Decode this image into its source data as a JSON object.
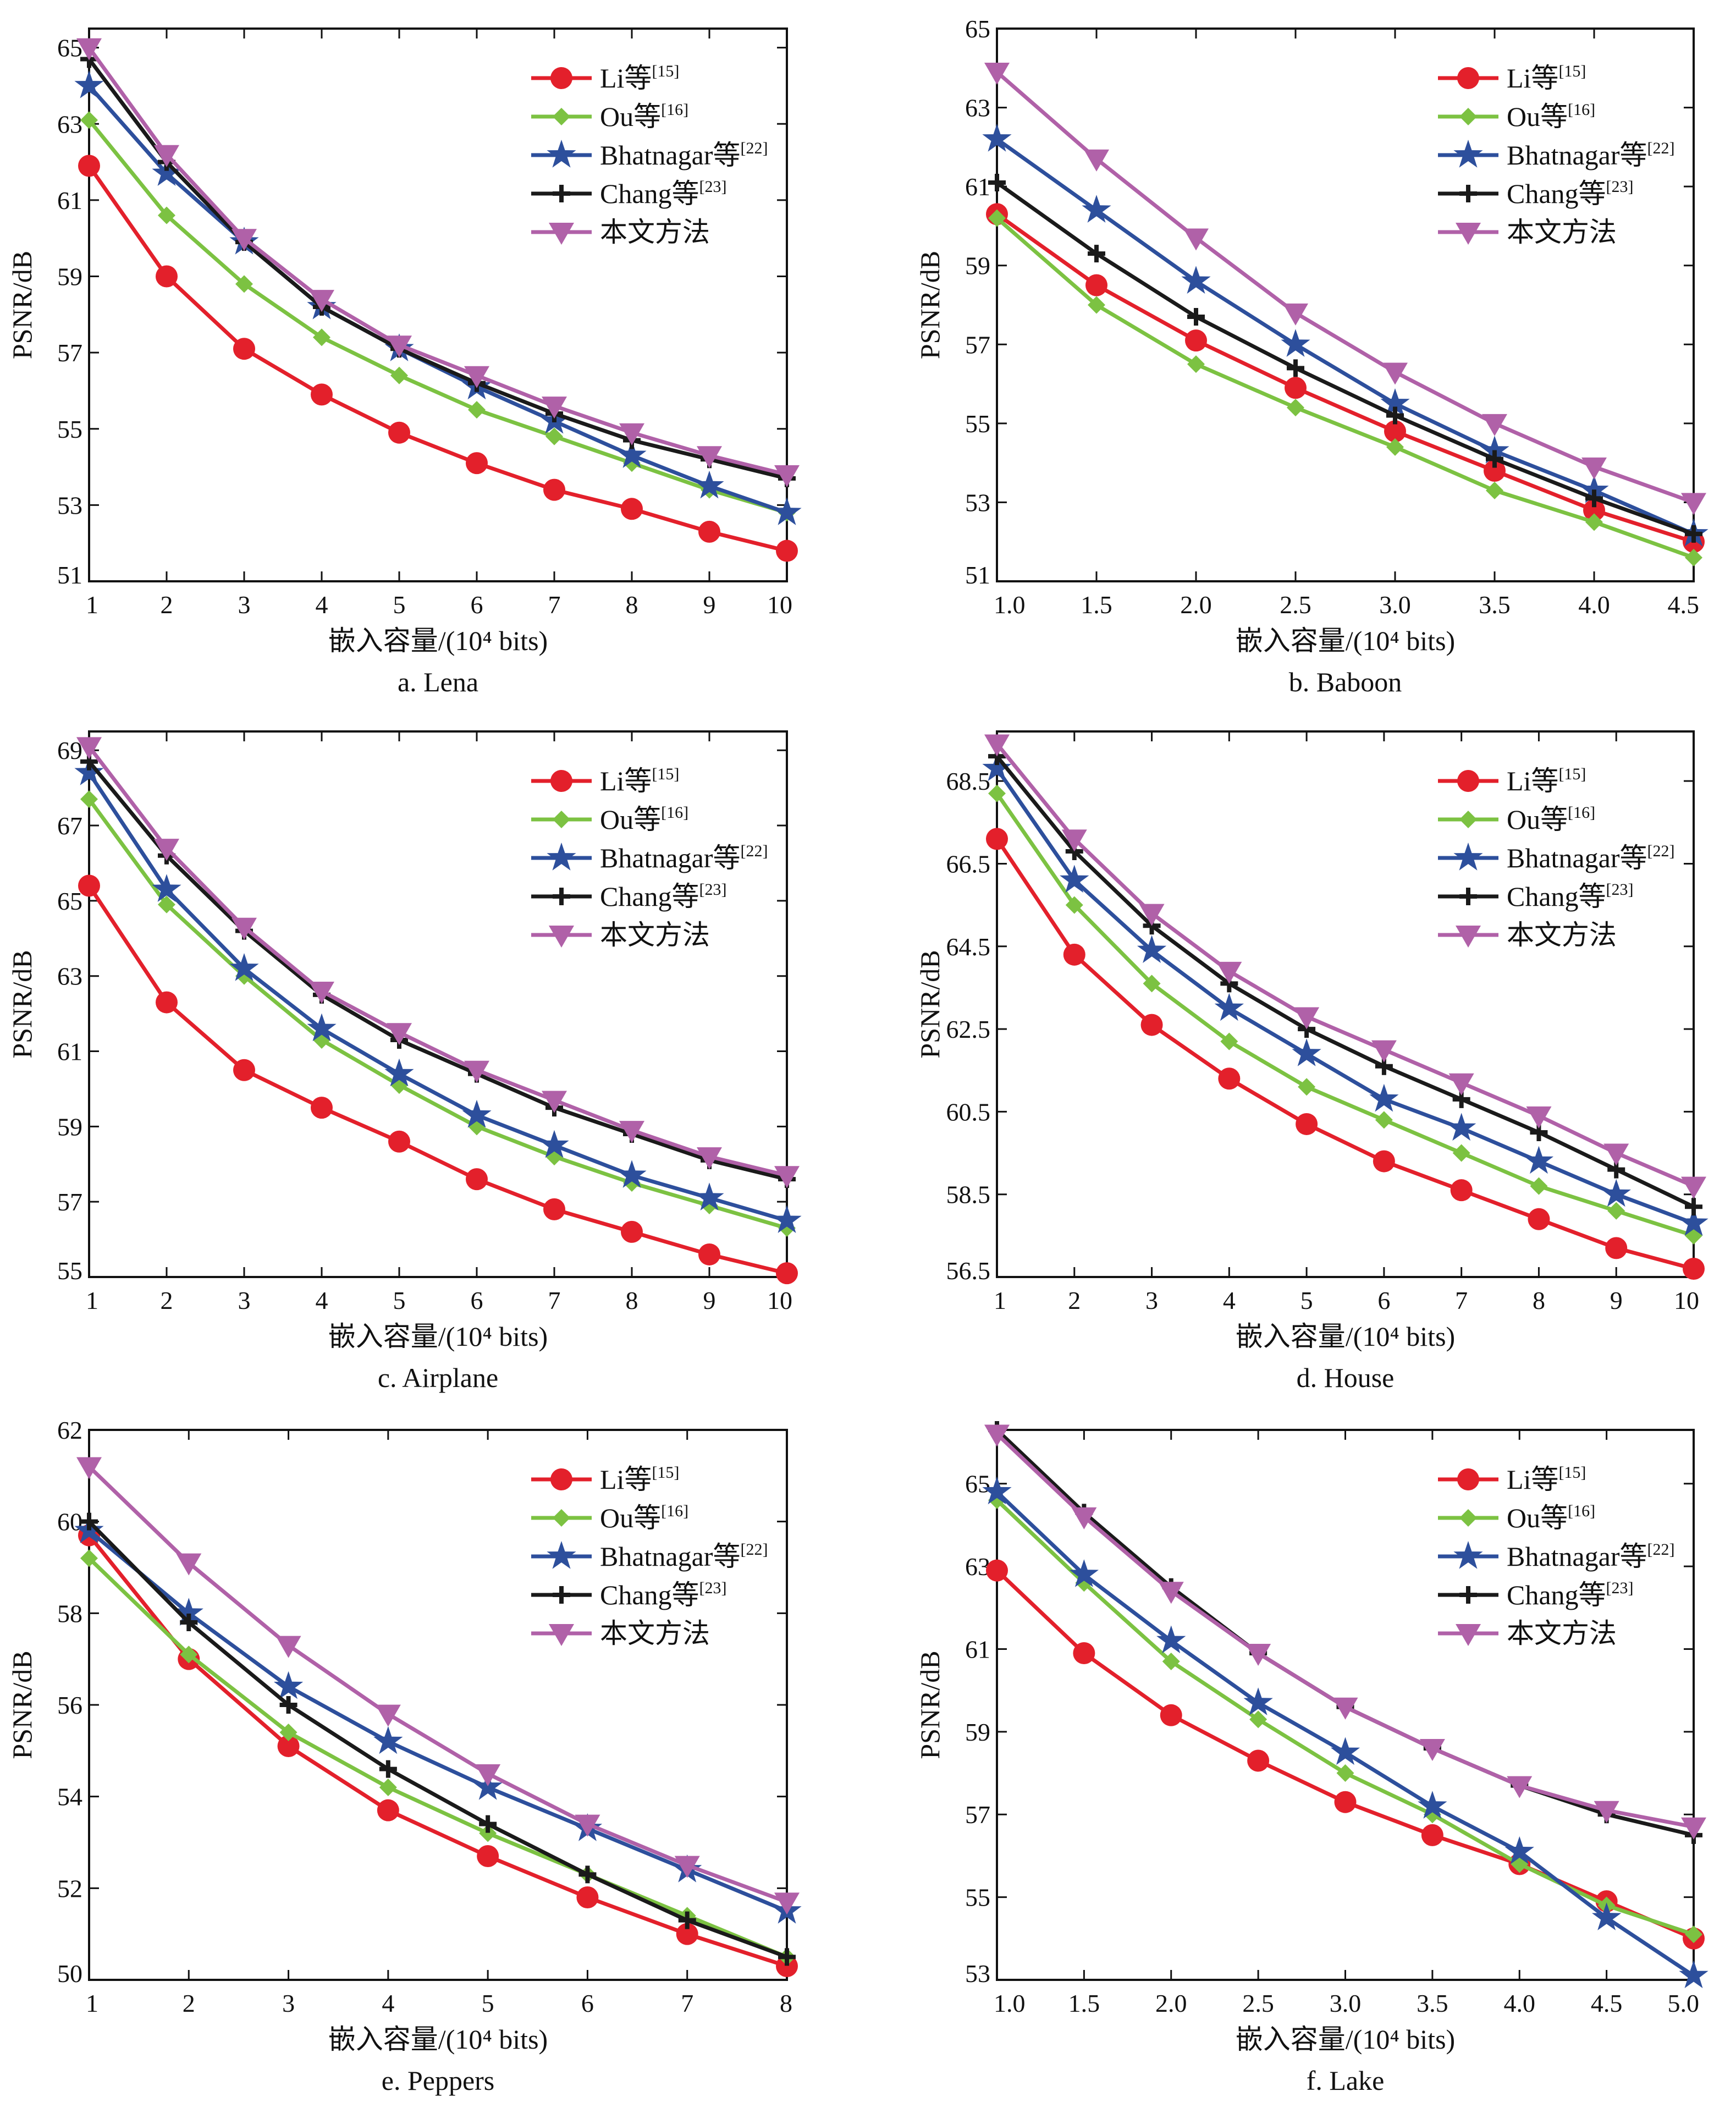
{
  "styles": {
    "Li": {
      "color": "#e3202b",
      "marker": "circle"
    },
    "Ou": {
      "color": "#7cc242",
      "marker": "diamond"
    },
    "Bhatnagar": {
      "color": "#2d4f9c",
      "marker": "star"
    },
    "Chang": {
      "color": "#1a1a1a",
      "marker": "plus"
    },
    "Ours": {
      "color": "#b061a8",
      "marker": "triangle-down"
    }
  },
  "chart_data": [
    {
      "type": "line",
      "caption": "a. Lena",
      "xlabel": "嵌入容量/(10⁴ bits)",
      "ylabel": "PSNR/dB",
      "xlim": [
        1,
        10
      ],
      "ylim": [
        51,
        65.5
      ],
      "xticks": [
        1,
        2,
        3,
        4,
        5,
        6,
        7,
        8,
        9,
        10
      ],
      "xtick_labels": [
        "1",
        "2",
        "3",
        "4",
        "5",
        "6",
        "7",
        "8",
        "9",
        "10"
      ],
      "yticks": [
        51,
        53,
        55,
        57,
        59,
        61,
        63,
        65
      ],
      "ytick_labels": [
        "51",
        "53",
        "55",
        "57",
        "59",
        "61",
        "63",
        "65"
      ],
      "x": [
        1,
        2,
        3,
        4,
        5,
        6,
        7,
        8,
        9,
        10
      ],
      "legend_position": "top-right",
      "series": [
        {
          "key": "Li",
          "name": "Li等",
          "ref": "[15]",
          "values": [
            61.9,
            59.0,
            57.1,
            55.9,
            54.9,
            54.1,
            53.4,
            52.9,
            52.3,
            51.8
          ]
        },
        {
          "key": "Ou",
          "name": "Ou等",
          "ref": "[16]",
          "values": [
            63.1,
            60.6,
            58.8,
            57.4,
            56.4,
            55.5,
            54.8,
            54.1,
            53.4,
            52.8
          ]
        },
        {
          "key": "Bhatnagar",
          "name": "Bhatnagar等",
          "ref": "[22]",
          "values": [
            64.0,
            61.7,
            59.9,
            58.2,
            57.1,
            56.1,
            55.2,
            54.3,
            53.5,
            52.8
          ]
        },
        {
          "key": "Chang",
          "name": "Chang等",
          "ref": "[23]",
          "values": [
            64.7,
            62.0,
            59.9,
            58.2,
            57.1,
            56.2,
            55.4,
            54.7,
            54.2,
            53.7
          ]
        },
        {
          "key": "Ours",
          "name": "本文方法",
          "ref": "",
          "values": [
            65.0,
            62.2,
            60.0,
            58.4,
            57.2,
            56.4,
            55.6,
            54.9,
            54.3,
            53.8
          ]
        }
      ]
    },
    {
      "type": "line",
      "caption": "b. Baboon",
      "xlabel": "嵌入容量/(10⁴ bits)",
      "ylabel": "PSNR/dB",
      "xlim": [
        1.0,
        4.5
      ],
      "ylim": [
        51,
        65
      ],
      "xticks": [
        1.0,
        1.5,
        2.0,
        2.5,
        3.0,
        3.5,
        4.0,
        4.5
      ],
      "xtick_labels": [
        "1.0",
        "1.5",
        "2.0",
        "2.5",
        "3.0",
        "3.5",
        "4.0",
        "4.5"
      ],
      "yticks": [
        51,
        53,
        55,
        57,
        59,
        61,
        63,
        65
      ],
      "ytick_labels": [
        "51",
        "53",
        "55",
        "57",
        "59",
        "61",
        "63",
        "65"
      ],
      "x": [
        1.0,
        1.5,
        2.0,
        2.5,
        3.0,
        3.5,
        4.0,
        4.5
      ],
      "legend_position": "top-right",
      "series": [
        {
          "key": "Li",
          "name": "Li等",
          "ref": "[15]",
          "values": [
            60.3,
            58.5,
            57.1,
            55.9,
            54.8,
            53.8,
            52.8,
            52.0
          ]
        },
        {
          "key": "Ou",
          "name": "Ou等",
          "ref": "[16]",
          "values": [
            60.2,
            58.0,
            56.5,
            55.4,
            54.4,
            53.3,
            52.5,
            51.6
          ]
        },
        {
          "key": "Bhatnagar",
          "name": "Bhatnagar等",
          "ref": "[22]",
          "values": [
            62.2,
            60.4,
            58.6,
            57.0,
            55.5,
            54.3,
            53.3,
            52.2
          ]
        },
        {
          "key": "Chang",
          "name": "Chang等",
          "ref": "[23]",
          "values": [
            61.1,
            59.3,
            57.7,
            56.4,
            55.2,
            54.1,
            53.1,
            52.2
          ]
        },
        {
          "key": "Ours",
          "name": "本文方法",
          "ref": "",
          "values": [
            63.9,
            61.7,
            59.7,
            57.8,
            56.3,
            55.0,
            53.9,
            53.0
          ]
        }
      ]
    },
    {
      "type": "line",
      "caption": "c. Airplane",
      "xlabel": "嵌入容量/(10⁴ bits)",
      "ylabel": "PSNR/dB",
      "xlim": [
        1,
        10
      ],
      "ylim": [
        55,
        69.5
      ],
      "xticks": [
        1,
        2,
        3,
        4,
        5,
        6,
        7,
        8,
        9,
        10
      ],
      "xtick_labels": [
        "1",
        "2",
        "3",
        "4",
        "5",
        "6",
        "7",
        "8",
        "9",
        "10"
      ],
      "yticks": [
        55,
        57,
        59,
        61,
        63,
        65,
        67,
        69
      ],
      "ytick_labels": [
        "55",
        "57",
        "59",
        "61",
        "63",
        "65",
        "67",
        "69"
      ],
      "x": [
        1,
        2,
        3,
        4,
        5,
        6,
        7,
        8,
        9,
        10
      ],
      "legend_position": "top-right",
      "series": [
        {
          "key": "Li",
          "name": "Li等",
          "ref": "[15]",
          "values": [
            65.4,
            62.3,
            60.5,
            59.5,
            58.6,
            57.6,
            56.8,
            56.2,
            55.6,
            55.1
          ]
        },
        {
          "key": "Ou",
          "name": "Ou等",
          "ref": "[16]",
          "values": [
            67.7,
            64.9,
            63.0,
            61.3,
            60.1,
            59.0,
            58.2,
            57.5,
            56.9,
            56.3
          ]
        },
        {
          "key": "Bhatnagar",
          "name": "Bhatnagar等",
          "ref": "[22]",
          "values": [
            68.4,
            65.3,
            63.2,
            61.6,
            60.4,
            59.3,
            58.5,
            57.7,
            57.1,
            56.5
          ]
        },
        {
          "key": "Chang",
          "name": "Chang等",
          "ref": "[23]",
          "values": [
            68.7,
            66.2,
            64.2,
            62.5,
            61.3,
            60.4,
            59.5,
            58.8,
            58.1,
            57.6
          ]
        },
        {
          "key": "Ours",
          "name": "本文方法",
          "ref": "",
          "values": [
            69.1,
            66.4,
            64.3,
            62.6,
            61.5,
            60.5,
            59.7,
            58.9,
            58.2,
            57.7
          ]
        }
      ]
    },
    {
      "type": "line",
      "caption": "d. House",
      "xlabel": "嵌入容量/(10⁴ bits)",
      "ylabel": "PSNR/dB",
      "xlim": [
        1,
        10
      ],
      "ylim": [
        56.5,
        69.7
      ],
      "xticks": [
        1,
        2,
        3,
        4,
        5,
        6,
        7,
        8,
        9,
        10
      ],
      "xtick_labels": [
        "1",
        "2",
        "3",
        "4",
        "5",
        "6",
        "7",
        "8",
        "9",
        "10"
      ],
      "yticks": [
        56.5,
        58.5,
        60.5,
        62.5,
        64.5,
        66.5,
        68.5
      ],
      "ytick_labels": [
        "56.5",
        "58.5",
        "60.5",
        "62.5",
        "64.5",
        "66.5",
        "68.5"
      ],
      "x": [
        1,
        2,
        3,
        4,
        5,
        6,
        7,
        8,
        9,
        10
      ],
      "legend_position": "top-right",
      "series": [
        {
          "key": "Li",
          "name": "Li等",
          "ref": "[15]",
          "values": [
            67.1,
            64.3,
            62.6,
            61.3,
            60.2,
            59.3,
            58.6,
            57.9,
            57.2,
            56.7
          ]
        },
        {
          "key": "Ou",
          "name": "Ou等",
          "ref": "[16]",
          "values": [
            68.2,
            65.5,
            63.6,
            62.2,
            61.1,
            60.3,
            59.5,
            58.7,
            58.1,
            57.5
          ]
        },
        {
          "key": "Bhatnagar",
          "name": "Bhatnagar等",
          "ref": "[22]",
          "values": [
            68.8,
            66.1,
            64.4,
            63.0,
            61.9,
            60.8,
            60.1,
            59.3,
            58.5,
            57.8
          ]
        },
        {
          "key": "Chang",
          "name": "Chang等",
          "ref": "[23]",
          "values": [
            69.1,
            66.8,
            65.0,
            63.6,
            62.5,
            61.6,
            60.8,
            60.0,
            59.1,
            58.2
          ]
        },
        {
          "key": "Ours",
          "name": "本文方法",
          "ref": "",
          "values": [
            69.4,
            67.1,
            65.3,
            63.9,
            62.8,
            62.0,
            61.2,
            60.4,
            59.5,
            58.7
          ]
        }
      ]
    },
    {
      "type": "line",
      "caption": "e. Peppers",
      "xlabel": "嵌入容量/(10⁴ bits)",
      "ylabel": "PSNR/dB",
      "xlim": [
        1,
        8
      ],
      "ylim": [
        50,
        62
      ],
      "xticks": [
        1,
        2,
        3,
        4,
        5,
        6,
        7,
        8
      ],
      "xtick_labels": [
        "1",
        "2",
        "3",
        "4",
        "5",
        "6",
        "7",
        "8"
      ],
      "yticks": [
        50,
        52,
        54,
        56,
        58,
        60,
        62
      ],
      "ytick_labels": [
        "50",
        "52",
        "54",
        "56",
        "58",
        "60",
        "62"
      ],
      "x": [
        1,
        2,
        3,
        4,
        5,
        6,
        7,
        8
      ],
      "legend_position": "top-right",
      "series": [
        {
          "key": "Li",
          "name": "Li等",
          "ref": "[15]",
          "values": [
            59.7,
            57.0,
            55.1,
            53.7,
            52.7,
            51.8,
            51.0,
            50.3
          ]
        },
        {
          "key": "Ou",
          "name": "Ou等",
          "ref": "[16]",
          "values": [
            59.2,
            57.1,
            55.4,
            54.2,
            53.2,
            52.3,
            51.4,
            50.5
          ]
        },
        {
          "key": "Bhatnagar",
          "name": "Bhatnagar等",
          "ref": "[22]",
          "values": [
            59.8,
            58.0,
            56.4,
            55.2,
            54.2,
            53.3,
            52.4,
            51.5
          ]
        },
        {
          "key": "Chang",
          "name": "Chang等",
          "ref": "[23]",
          "values": [
            60.0,
            57.8,
            56.0,
            54.6,
            53.4,
            52.3,
            51.3,
            50.5
          ]
        },
        {
          "key": "Ours",
          "name": "本文方法",
          "ref": "",
          "values": [
            61.2,
            59.1,
            57.3,
            55.8,
            54.5,
            53.4,
            52.5,
            51.7
          ]
        }
      ]
    },
    {
      "type": "line",
      "caption": "f. Lake",
      "xlabel": "嵌入容量/(10⁴ bits)",
      "ylabel": "PSNR/dB",
      "xlim": [
        1.0,
        5.0
      ],
      "ylim": [
        53,
        66.3
      ],
      "xticks": [
        1.0,
        1.5,
        2.0,
        2.5,
        3.0,
        3.5,
        4.0,
        4.5,
        5.0
      ],
      "xtick_labels": [
        "1.0",
        "1.5",
        "2.0",
        "2.5",
        "3.0",
        "3.5",
        "4.0",
        "4.5",
        "5.0"
      ],
      "yticks": [
        53,
        55,
        57,
        59,
        61,
        63,
        65
      ],
      "ytick_labels": [
        "53",
        "55",
        "57",
        "59",
        "61",
        "63",
        "65"
      ],
      "x": [
        1.0,
        1.5,
        2.0,
        2.5,
        3.0,
        3.5,
        4.0,
        4.5,
        5.0
      ],
      "legend_position": "top-right",
      "series": [
        {
          "key": "Li",
          "name": "Li等",
          "ref": "[15]",
          "values": [
            62.9,
            60.9,
            59.4,
            58.3,
            57.3,
            56.5,
            55.8,
            54.9,
            54.0
          ]
        },
        {
          "key": "Ou",
          "name": "Ou等",
          "ref": "[16]",
          "values": [
            64.6,
            62.6,
            60.7,
            59.3,
            58.0,
            57.0,
            55.8,
            54.8,
            54.1
          ]
        },
        {
          "key": "Bhatnagar",
          "name": "Bhatnagar等",
          "ref": "[22]",
          "values": [
            64.8,
            62.8,
            61.2,
            59.7,
            58.5,
            57.2,
            56.1,
            54.5,
            53.1
          ]
        },
        {
          "key": "Chang",
          "name": "Chang等",
          "ref": "[23]",
          "values": [
            66.3,
            64.3,
            62.5,
            60.9,
            59.6,
            58.6,
            57.7,
            57.0,
            56.5
          ]
        },
        {
          "key": "Ours",
          "name": "本文方法",
          "ref": "",
          "values": [
            66.2,
            64.2,
            62.4,
            60.9,
            59.6,
            58.6,
            57.7,
            57.1,
            56.7
          ]
        }
      ]
    }
  ]
}
